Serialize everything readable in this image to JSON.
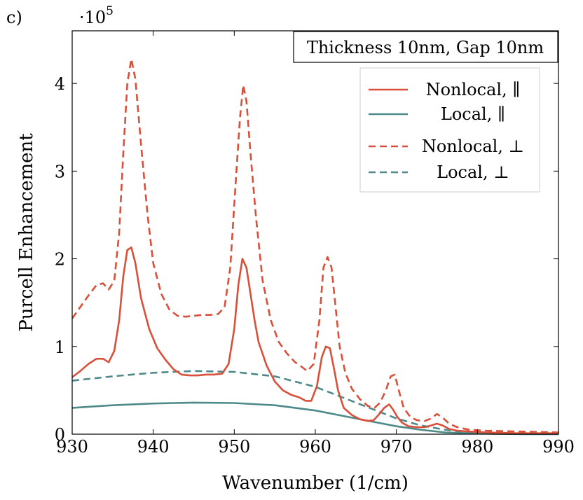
{
  "chart_data": {
    "type": "line",
    "panel_label": "c)",
    "title": "",
    "xlabel": "Wavenumber (1/cm)",
    "ylabel": "Purcell Enhancement",
    "y_scale_label": "·10",
    "y_scale_exponent": "5",
    "annotation": "Thickness 10nm, Gap 10nm",
    "xlim": [
      930,
      990
    ],
    "ylim": [
      0,
      4.6
    ],
    "xticks": [
      930,
      940,
      950,
      960,
      970,
      980,
      990
    ],
    "yticks": [
      0,
      1,
      2,
      3,
      4
    ],
    "grid": false,
    "legend_position": "top-right",
    "colors": {
      "nonlocal": "#d9503a",
      "local": "#4e8a8a"
    },
    "series": [
      {
        "name": "Nonlocal, ∥",
        "color": "#d9503a",
        "dash": "solid",
        "x": [
          930,
          931,
          932,
          933,
          933.8,
          934.5,
          935.2,
          935.8,
          936.3,
          936.8,
          937.3,
          937.8,
          938.5,
          939.5,
          940.5,
          941.5,
          942.5,
          943.5,
          944.5,
          945.5,
          946.5,
          947.5,
          948.5,
          949.3,
          950,
          950.5,
          951,
          951.5,
          952,
          952.5,
          953,
          954,
          955,
          956,
          957,
          958,
          958.8,
          959.5,
          960.2,
          960.8,
          961.3,
          961.8,
          962.3,
          962.8,
          963.5,
          964.5,
          965.5,
          966.5,
          967.2,
          967.8,
          968.5,
          969.1,
          969.6,
          970.1,
          970.7,
          971.5,
          972.5,
          973.5,
          974.3,
          975,
          975.7,
          976.5,
          977.5,
          979,
          981,
          985,
          990
        ],
        "y": [
          0.65,
          0.72,
          0.8,
          0.86,
          0.86,
          0.82,
          0.95,
          1.3,
          1.8,
          2.1,
          2.13,
          1.95,
          1.55,
          1.2,
          0.98,
          0.85,
          0.74,
          0.68,
          0.67,
          0.67,
          0.68,
          0.68,
          0.69,
          0.8,
          1.2,
          1.7,
          2.0,
          1.9,
          1.6,
          1.3,
          1.05,
          0.78,
          0.6,
          0.5,
          0.45,
          0.42,
          0.38,
          0.38,
          0.55,
          0.88,
          1.0,
          0.98,
          0.75,
          0.5,
          0.3,
          0.22,
          0.17,
          0.15,
          0.16,
          0.22,
          0.3,
          0.34,
          0.28,
          0.2,
          0.13,
          0.09,
          0.08,
          0.08,
          0.1,
          0.12,
          0.1,
          0.06,
          0.04,
          0.03,
          0.02,
          0.01,
          0.01
        ]
      },
      {
        "name": "Local, ∥",
        "color": "#4e8a8a",
        "dash": "solid",
        "x": [
          930,
          935,
          940,
          945,
          950,
          955,
          960,
          965,
          970,
          973,
          976,
          979,
          982,
          986,
          990
        ],
        "y": [
          0.3,
          0.33,
          0.35,
          0.36,
          0.355,
          0.33,
          0.27,
          0.18,
          0.09,
          0.05,
          0.02,
          0.01,
          0.005,
          0,
          0
        ]
      },
      {
        "name": "Nonlocal, ⊥",
        "color": "#d9503a",
        "dash": "dashed",
        "x": [
          930,
          931,
          932,
          933,
          933.8,
          934.5,
          935.2,
          935.8,
          936.3,
          936.8,
          937.3,
          937.8,
          938.5,
          939.3,
          940,
          941,
          942,
          943,
          944,
          945,
          946,
          947,
          948,
          948.8,
          949.5,
          950.2,
          950.7,
          951.1,
          951.5,
          952,
          952.7,
          953.5,
          954.5,
          955.5,
          956.5,
          957.5,
          958.3,
          959,
          959.8,
          960.5,
          961,
          961.5,
          962,
          962.5,
          963,
          963.7,
          964.5,
          965.5,
          966.5,
          967.3,
          968,
          968.7,
          969.3,
          969.8,
          970.3,
          970.9,
          971.7,
          972.5,
          973.5,
          974.3,
          975,
          975.7,
          976.5,
          977.5,
          979,
          981,
          985,
          990
        ],
        "y": [
          1.32,
          1.45,
          1.58,
          1.7,
          1.72,
          1.65,
          1.75,
          2.3,
          3.2,
          4.0,
          4.28,
          4.05,
          3.3,
          2.5,
          1.95,
          1.6,
          1.42,
          1.35,
          1.34,
          1.35,
          1.36,
          1.36,
          1.37,
          1.45,
          1.9,
          2.9,
          3.6,
          3.98,
          3.8,
          3.2,
          2.45,
          1.75,
          1.3,
          1.05,
          0.92,
          0.82,
          0.77,
          0.72,
          0.8,
          1.3,
          1.9,
          2.02,
          1.9,
          1.45,
          1.0,
          0.7,
          0.52,
          0.4,
          0.32,
          0.3,
          0.36,
          0.5,
          0.66,
          0.68,
          0.5,
          0.3,
          0.2,
          0.16,
          0.15,
          0.18,
          0.23,
          0.19,
          0.12,
          0.08,
          0.05,
          0.04,
          0.03,
          0.02
        ]
      },
      {
        "name": "Local, ⊥",
        "color": "#4e8a8a",
        "dash": "dashed",
        "x": [
          930,
          935,
          940,
          945,
          950,
          955,
          960,
          965,
          970,
          973,
          976,
          979,
          982,
          986,
          990
        ],
        "y": [
          0.61,
          0.66,
          0.7,
          0.72,
          0.71,
          0.66,
          0.54,
          0.36,
          0.18,
          0.1,
          0.05,
          0.02,
          0.01,
          0.005,
          0
        ]
      }
    ]
  }
}
